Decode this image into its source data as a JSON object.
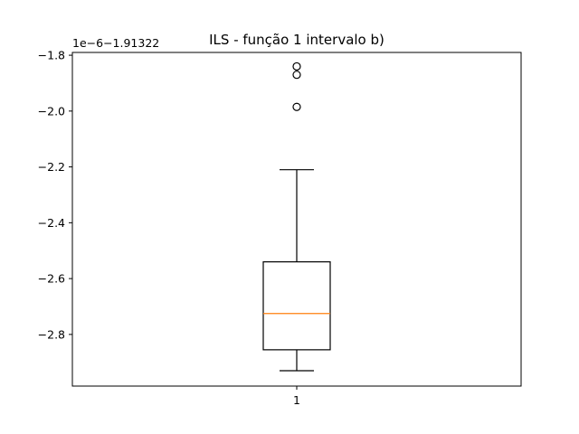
{
  "chart_data": {
    "type": "boxplot",
    "title": "ILS - função 1 intervalo b)",
    "xlabel": "",
    "ylabel": "",
    "y_offset_label": "1e−6−1.91322",
    "categories": [
      "1"
    ],
    "series": [
      {
        "category": "1",
        "whisker_low": -2.93,
        "q1": -2.855,
        "median": -2.725,
        "q3": -2.54,
        "whisker_high": -2.21,
        "outliers": [
          -1.84,
          -1.87,
          -1.985
        ]
      }
    ],
    "ylim": [
      -2.985,
      -1.79
    ],
    "yticks": [
      -1.8,
      -2.0,
      -2.2,
      -2.4,
      -2.6,
      -2.8
    ],
    "ytick_labels": [
      "−1.8",
      "−2.0",
      "−2.2",
      "−2.4",
      "−2.6",
      "−2.8"
    ],
    "xtick_labels": [
      "1"
    ],
    "grid": false,
    "colors": {
      "box": "#000000",
      "median": "#ff7f0e",
      "whisker": "#000000",
      "outlier": "#000000",
      "axes": "#000000",
      "background": "#ffffff"
    }
  }
}
